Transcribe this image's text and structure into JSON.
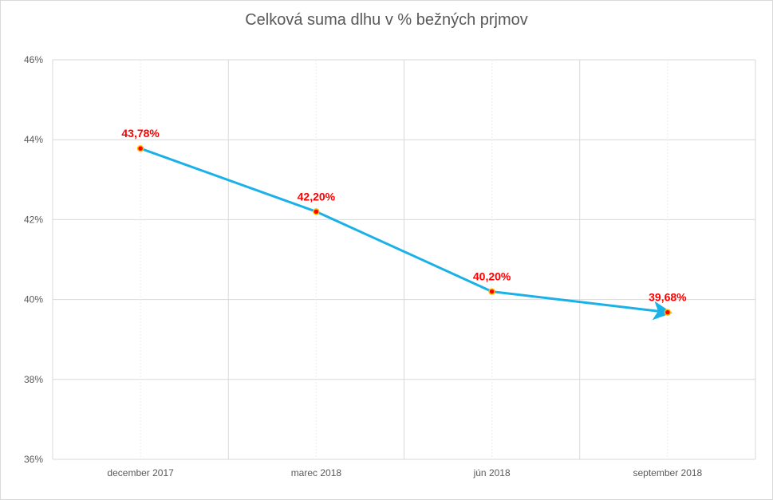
{
  "chart_data": {
    "type": "line",
    "title": "Celková suma dlhu v % bežných prjmov",
    "xlabel": "",
    "ylabel": "",
    "categories": [
      "december 2017",
      "marec 2018",
      "jún 2018",
      "september 2018"
    ],
    "series": [
      {
        "values": [
          43.78,
          42.2,
          40.2,
          39.68
        ]
      }
    ],
    "data_labels": [
      "43,78%",
      "42,20%",
      "40,20%",
      "39,68%"
    ],
    "y_ticks": [
      36,
      38,
      40,
      42,
      44,
      46
    ],
    "y_tick_labels": [
      "36%",
      "38%",
      "40%",
      "42%",
      "44%",
      "46%"
    ],
    "ylim": [
      36,
      46
    ],
    "grid": true,
    "legend": "none",
    "colors": {
      "line": "#1ab0e8",
      "marker_fill": "#ff0000",
      "marker_edge": "#ffc000",
      "data_label": "#ff0000",
      "grid": "#d9d9d9",
      "tick_text": "#595959"
    }
  }
}
